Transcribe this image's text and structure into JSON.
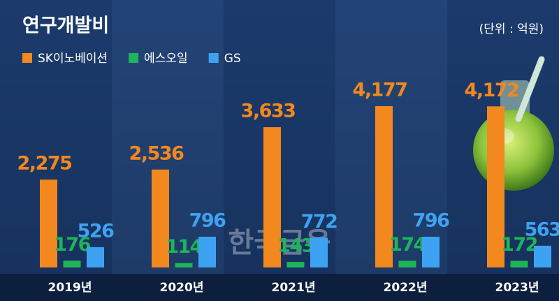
{
  "chart_data": {
    "type": "bar",
    "title": "연구개발비",
    "subtitle": "(단위 : 억원)",
    "watermark": "한국금융",
    "categories": [
      "2019년",
      "2020년",
      "2021년",
      "2022년",
      "2023년"
    ],
    "series": [
      {
        "name": "SK이노베이션",
        "color": "#f2881e",
        "values": [
          2275,
          2536,
          3633,
          4177,
          4172
        ],
        "value_labels": [
          "2,275",
          "2,536",
          "3,633",
          "4,177",
          "4,172"
        ]
      },
      {
        "name": "에스오일",
        "color": "#1db45a",
        "values": [
          176,
          114,
          143,
          174,
          172
        ],
        "value_labels": [
          "176",
          "114",
          "143",
          "174",
          "172"
        ]
      },
      {
        "name": "GS",
        "color": "#3ea2f2",
        "values": [
          526,
          796,
          772,
          796,
          563
        ],
        "value_labels": [
          "526",
          "796",
          "772",
          "796",
          "563"
        ]
      }
    ]
  }
}
